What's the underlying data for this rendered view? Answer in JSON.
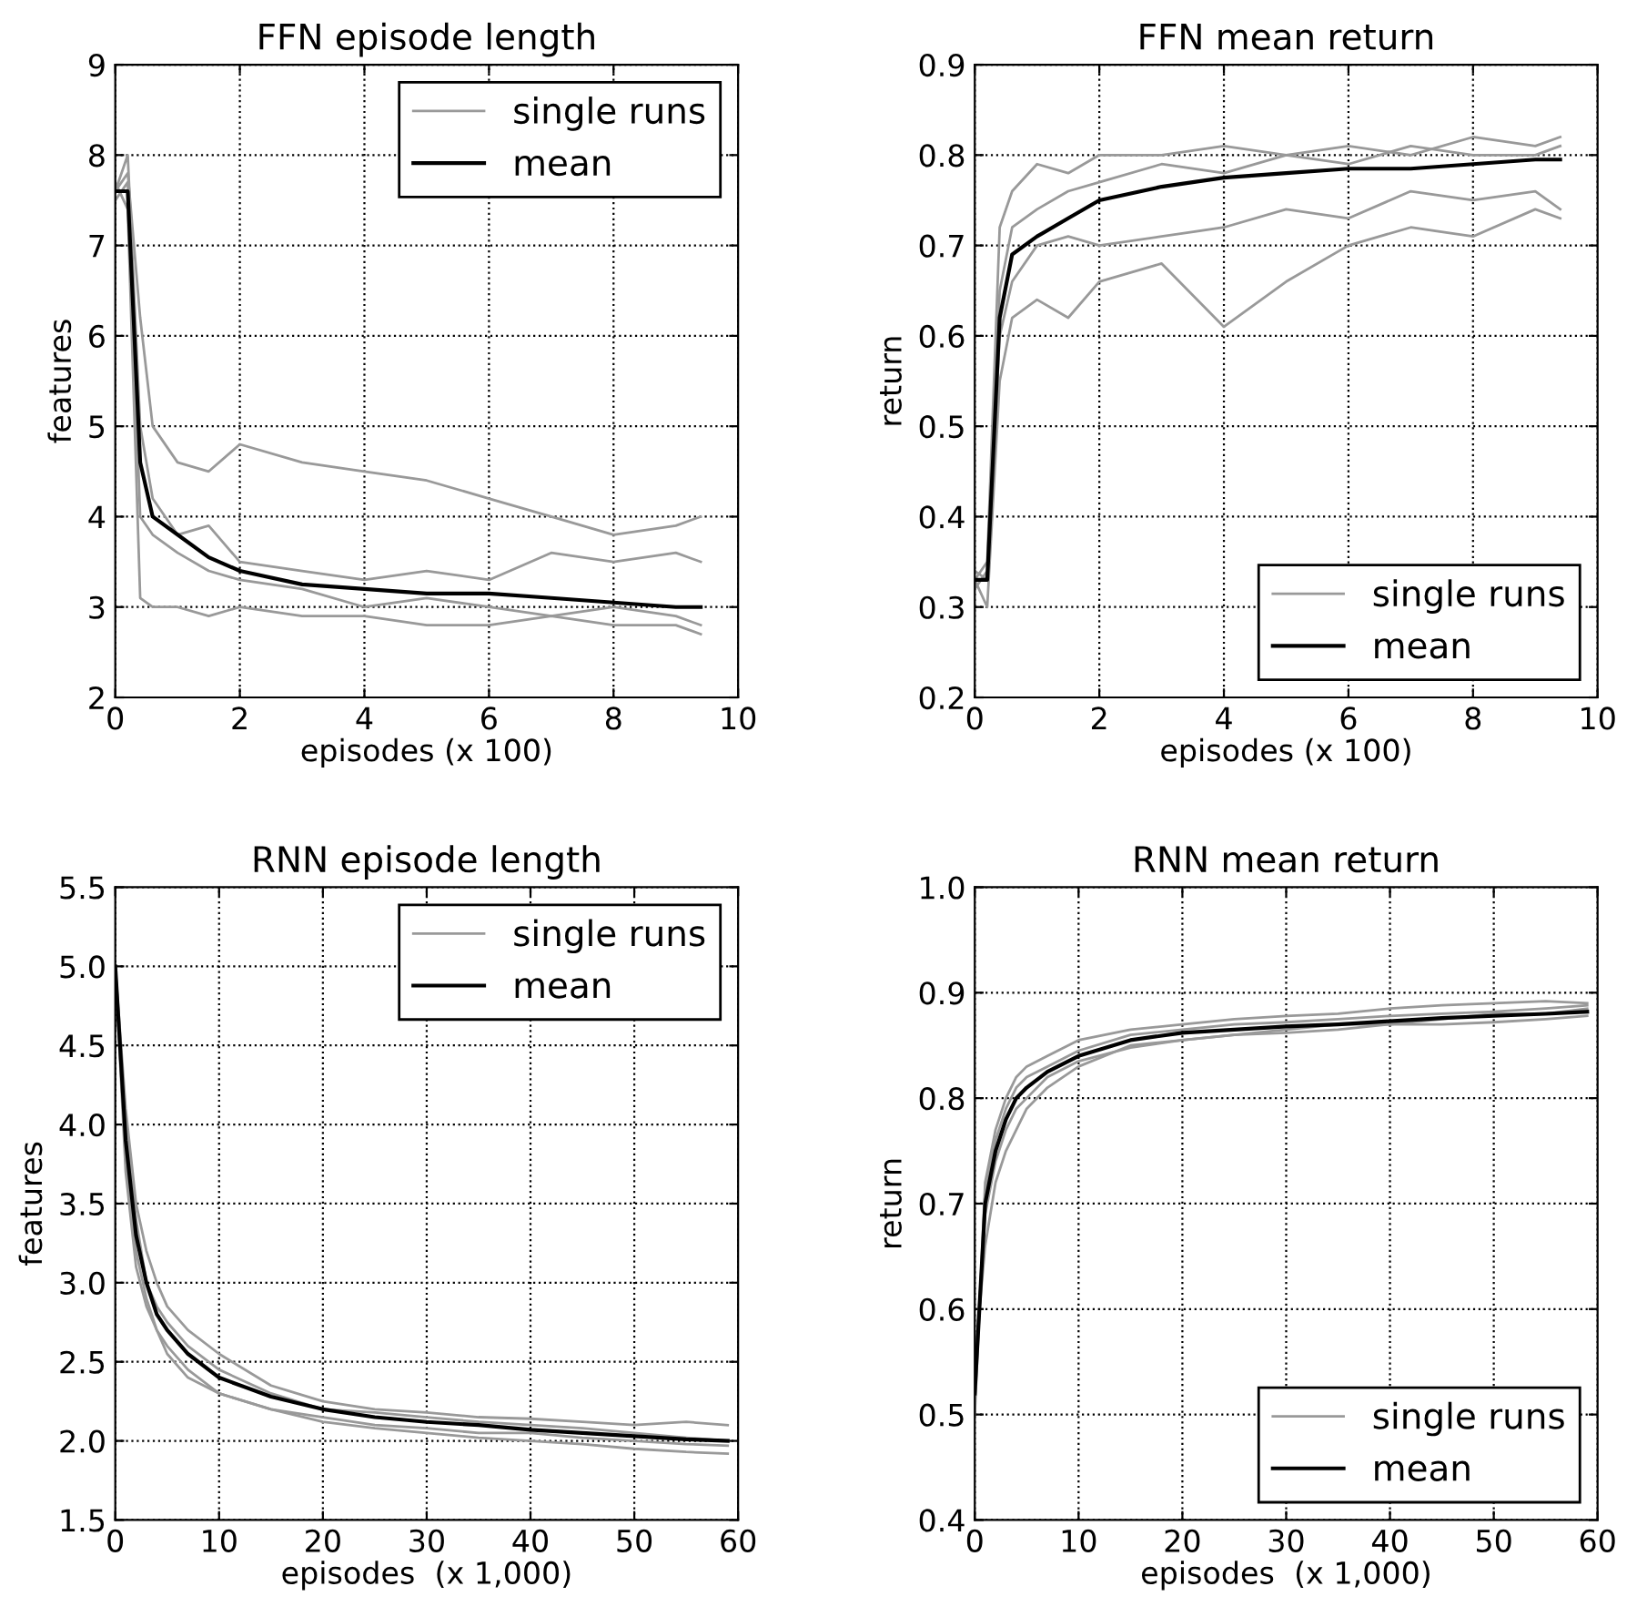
{
  "chart_data": [
    {
      "type": "line",
      "title": "FFN episode length",
      "xlabel": "episodes (x 100)",
      "ylabel": "features",
      "xlim": [
        0,
        10
      ],
      "xticks": [
        0,
        2,
        4,
        6,
        8,
        10
      ],
      "ylim": [
        2,
        9
      ],
      "yticks": [
        2,
        3,
        4,
        5,
        6,
        7,
        8,
        9
      ],
      "grid": true,
      "legend": "top right",
      "x": [
        0,
        0.2,
        0.4,
        0.6,
        1,
        1.5,
        2,
        3,
        4,
        5,
        6,
        7,
        8,
        9,
        9.4
      ],
      "series": [
        {
          "name": "single runs",
          "color": "#999999",
          "values": [
            7.6,
            7.8,
            6.2,
            5.0,
            4.6,
            4.5,
            4.8,
            4.6,
            4.5,
            4.4,
            4.2,
            4.0,
            3.8,
            3.9,
            4.0
          ]
        },
        {
          "color": "#999999",
          "values": [
            7.5,
            7.7,
            4.0,
            3.8,
            3.6,
            3.4,
            3.3,
            3.2,
            3.0,
            3.1,
            3.0,
            2.9,
            3.0,
            2.9,
            2.8
          ]
        },
        {
          "color": "#999999",
          "values": [
            7.7,
            7.4,
            3.1,
            3.0,
            3.0,
            2.9,
            3.0,
            2.9,
            2.9,
            2.8,
            2.8,
            2.9,
            2.8,
            2.8,
            2.7
          ]
        },
        {
          "color": "#999999",
          "values": [
            7.6,
            8.0,
            5.0,
            4.2,
            3.8,
            3.9,
            3.5,
            3.4,
            3.3,
            3.4,
            3.3,
            3.6,
            3.5,
            3.6,
            3.5
          ]
        },
        {
          "name": "mean",
          "color": "#000000",
          "values": [
            7.6,
            7.6,
            4.6,
            4.0,
            3.8,
            3.55,
            3.4,
            3.25,
            3.2,
            3.15,
            3.15,
            3.1,
            3.05,
            3.0,
            3.0
          ]
        }
      ]
    },
    {
      "type": "line",
      "title": "FFN mean return",
      "xlabel": "episodes (x 100)",
      "ylabel": "return",
      "xlim": [
        0,
        10
      ],
      "xticks": [
        0,
        2,
        4,
        6,
        8,
        10
      ],
      "ylim": [
        0.2,
        0.9
      ],
      "yticks": [
        0.2,
        0.3,
        0.4,
        0.5,
        0.6,
        0.7,
        0.8,
        0.9
      ],
      "grid": true,
      "legend": "bottom right",
      "x": [
        0,
        0.2,
        0.4,
        0.6,
        1,
        1.5,
        2,
        3,
        4,
        5,
        6,
        7,
        8,
        9,
        9.4
      ],
      "series": [
        {
          "name": "single runs",
          "color": "#999999",
          "values": [
            0.33,
            0.3,
            0.55,
            0.62,
            0.64,
            0.62,
            0.66,
            0.68,
            0.61,
            0.66,
            0.7,
            0.72,
            0.71,
            0.74,
            0.73
          ]
        },
        {
          "color": "#999999",
          "values": [
            0.33,
            0.35,
            0.72,
            0.76,
            0.79,
            0.78,
            0.8,
            0.8,
            0.81,
            0.8,
            0.81,
            0.8,
            0.82,
            0.81,
            0.82
          ]
        },
        {
          "color": "#999999",
          "values": [
            0.32,
            0.34,
            0.65,
            0.72,
            0.74,
            0.76,
            0.77,
            0.79,
            0.78,
            0.8,
            0.79,
            0.81,
            0.8,
            0.8,
            0.81
          ]
        },
        {
          "color": "#999999",
          "values": [
            0.34,
            0.33,
            0.6,
            0.66,
            0.7,
            0.71,
            0.7,
            0.71,
            0.72,
            0.74,
            0.73,
            0.76,
            0.75,
            0.76,
            0.74
          ]
        },
        {
          "name": "mean",
          "color": "#000000",
          "values": [
            0.33,
            0.33,
            0.62,
            0.69,
            0.71,
            0.73,
            0.75,
            0.765,
            0.775,
            0.78,
            0.785,
            0.785,
            0.79,
            0.795,
            0.795
          ]
        }
      ]
    },
    {
      "type": "line",
      "title": "RNN episode length",
      "xlabel": "episodes  (x 1,000)",
      "ylabel": "features",
      "xlim": [
        0,
        60
      ],
      "xticks": [
        0,
        10,
        20,
        30,
        40,
        50,
        60
      ],
      "ylim": [
        1.5,
        5.5
      ],
      "yticks": [
        {
          "value": 1.5,
          "label": "1.5"
        },
        {
          "value": 2,
          "label": "2.0"
        },
        {
          "value": 2.5,
          "label": "2.5"
        },
        {
          "value": 3,
          "label": "3.0"
        },
        {
          "value": 3.5,
          "label": "3.5"
        },
        {
          "value": 4,
          "label": "4.0"
        },
        {
          "value": 4.5,
          "label": "4.5"
        },
        {
          "value": 5,
          "label": "5.0"
        },
        {
          "value": 5.5,
          "label": "5.5"
        }
      ],
      "grid": true,
      "legend": "top right",
      "x": [
        0,
        1,
        2,
        3,
        4,
        5,
        7,
        10,
        15,
        20,
        25,
        30,
        35,
        40,
        45,
        50,
        55,
        59
      ],
      "series": [
        {
          "name": "single runs",
          "color": "#999999",
          "values": [
            5.0,
            4.1,
            3.5,
            3.2,
            3.0,
            2.85,
            2.7,
            2.55,
            2.35,
            2.25,
            2.2,
            2.18,
            2.15,
            2.14,
            2.12,
            2.1,
            2.12,
            2.1
          ]
        },
        {
          "color": "#999999",
          "values": [
            5.0,
            3.8,
            3.2,
            2.9,
            2.7,
            2.6,
            2.45,
            2.3,
            2.2,
            2.12,
            2.08,
            2.05,
            2.02,
            2.0,
            1.98,
            1.95,
            1.93,
            1.92
          ]
        },
        {
          "color": "#999999",
          "values": [
            5.0,
            4.0,
            3.4,
            3.0,
            2.85,
            2.75,
            2.6,
            2.45,
            2.3,
            2.2,
            2.18,
            2.15,
            2.12,
            2.1,
            2.08,
            2.05,
            2.02,
            2.0
          ]
        },
        {
          "color": "#999999",
          "values": [
            5.0,
            3.7,
            3.1,
            2.85,
            2.7,
            2.55,
            2.4,
            2.3,
            2.2,
            2.15,
            2.1,
            2.08,
            2.05,
            2.05,
            2.02,
            2.0,
            1.98,
            1.97
          ]
        },
        {
          "name": "mean",
          "color": "#000000",
          "values": [
            5.0,
            3.9,
            3.3,
            3.0,
            2.8,
            2.7,
            2.55,
            2.4,
            2.28,
            2.2,
            2.15,
            2.12,
            2.1,
            2.07,
            2.05,
            2.03,
            2.01,
            2.0
          ]
        }
      ]
    },
    {
      "type": "line",
      "title": "RNN mean return",
      "xlabel": "episodes  (x 1,000)",
      "ylabel": "return",
      "xlim": [
        0,
        60
      ],
      "xticks": [
        0,
        10,
        20,
        30,
        40,
        50,
        60
      ],
      "ylim": [
        0.4,
        1.0
      ],
      "yticks": [
        {
          "value": 0.4,
          "label": "0.4"
        },
        {
          "value": 0.5,
          "label": "0.5"
        },
        {
          "value": 0.6,
          "label": "0.6"
        },
        {
          "value": 0.7,
          "label": "0.7"
        },
        {
          "value": 0.8,
          "label": "0.8"
        },
        {
          "value": 0.9,
          "label": "0.9"
        },
        {
          "value": 1.0,
          "label": "1.0"
        }
      ],
      "grid": true,
      "legend": "bottom right",
      "x": [
        0,
        1,
        2,
        3,
        4,
        5,
        7,
        10,
        15,
        20,
        25,
        30,
        35,
        40,
        45,
        50,
        55,
        59
      ],
      "series": [
        {
          "name": "single runs",
          "color": "#999999",
          "values": [
            0.55,
            0.66,
            0.72,
            0.75,
            0.77,
            0.79,
            0.81,
            0.83,
            0.85,
            0.855,
            0.86,
            0.865,
            0.87,
            0.87,
            0.875,
            0.88,
            0.88,
            0.885
          ]
        },
        {
          "color": "#999999",
          "values": [
            0.5,
            0.72,
            0.77,
            0.8,
            0.82,
            0.83,
            0.84,
            0.855,
            0.865,
            0.87,
            0.875,
            0.878,
            0.88,
            0.885,
            0.888,
            0.89,
            0.892,
            0.89
          ]
        },
        {
          "color": "#999999",
          "values": [
            0.54,
            0.69,
            0.74,
            0.77,
            0.79,
            0.8,
            0.82,
            0.835,
            0.848,
            0.855,
            0.86,
            0.862,
            0.865,
            0.87,
            0.87,
            0.872,
            0.875,
            0.878
          ]
        },
        {
          "color": "#999999",
          "values": [
            0.51,
            0.71,
            0.76,
            0.79,
            0.81,
            0.82,
            0.83,
            0.845,
            0.86,
            0.865,
            0.87,
            0.872,
            0.875,
            0.878,
            0.88,
            0.882,
            0.885,
            0.888
          ]
        },
        {
          "name": "mean",
          "color": "#000000",
          "values": [
            0.52,
            0.7,
            0.75,
            0.78,
            0.8,
            0.81,
            0.825,
            0.84,
            0.855,
            0.862,
            0.865,
            0.868,
            0.87,
            0.873,
            0.876,
            0.878,
            0.88,
            0.882
          ]
        }
      ]
    }
  ]
}
